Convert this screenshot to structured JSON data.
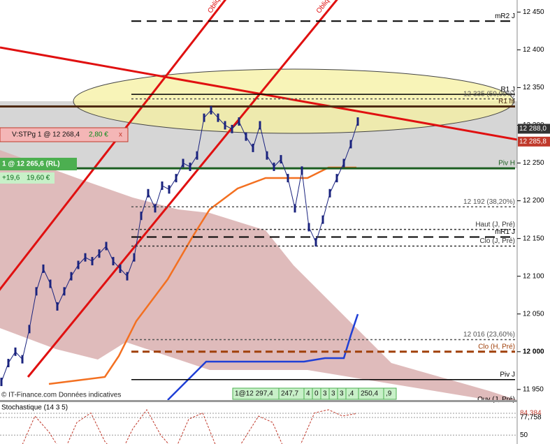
{
  "price_axis": {
    "ylim": [
      11936,
      12466
    ],
    "yticks": [
      {
        "value": 12450,
        "label": "12 450"
      },
      {
        "value": 12400,
        "label": "12 400"
      },
      {
        "value": 12350,
        "label": "12 350"
      },
      {
        "value": 12300,
        "label": "12 300"
      },
      {
        "value": 12250,
        "label": "12 250"
      },
      {
        "value": 12200,
        "label": "12 200"
      },
      {
        "value": 12150,
        "label": "12 150"
      },
      {
        "value": 12100,
        "label": "12 100"
      },
      {
        "value": 12050,
        "label": "12 050"
      },
      {
        "value": 12000,
        "label": "12 000"
      },
      {
        "value": 11950,
        "label": "11 950"
      }
    ]
  },
  "price": {
    "color": "#1a237e",
    "values": [
      11960,
      11985,
      12000,
      11990,
      12030,
      12080,
      12110,
      12090,
      12060,
      12080,
      12100,
      12115,
      12125,
      12120,
      12130,
      12140,
      12120,
      12110,
      12100,
      12125,
      12180,
      12210,
      12190,
      12220,
      12215,
      12230,
      12250,
      12245,
      12260,
      12310,
      12320,
      12310,
      12300,
      12295,
      12305,
      12285,
      12270,
      12300,
      12260,
      12245,
      12255,
      12230,
      12190,
      12240,
      12165,
      12145,
      12175,
      12210,
      12230,
      12250,
      12275,
      12305
    ]
  },
  "levels": [
    {
      "value": 12438,
      "label": "mR2 J",
      "style": "longdash",
      "color": "#000000"
    },
    {
      "value": 12341,
      "label": "R1 J",
      "style": "solid",
      "color": "#000000"
    },
    {
      "value": 12335,
      "label": "12 335 (50,00%)",
      "style": "dotted",
      "color": "#555555"
    },
    {
      "value": 12325,
      "label": "R1 m",
      "style": "thick",
      "color": "#4e2a12"
    },
    {
      "value": 12243,
      "label": "Piv H",
      "style": "thick",
      "color": "#1b5e20"
    },
    {
      "value": 12192,
      "label": "12 192 (38,20%)",
      "style": "dotted",
      "color": "#555555"
    },
    {
      "value": 12162,
      "label": "Haut (J, Pré)",
      "style": "dotted",
      "color": "#333333"
    },
    {
      "value": 12152,
      "label": "mR1 J",
      "style": "longdash",
      "color": "#000000"
    },
    {
      "value": 12140,
      "label": "Clo (J, Pré)",
      "style": "dotted",
      "color": "#333333"
    },
    {
      "value": 12016,
      "label": "12 016 (23,60%)",
      "style": "dotted",
      "color": "#555555"
    },
    {
      "value": 12000,
      "label": "Clo (H, Pré)",
      "style": "brown",
      "color": "#a0400a"
    },
    {
      "value": 11963,
      "label": "Piv J",
      "style": "solid",
      "color": "#000000"
    },
    {
      "value": 11930,
      "label": "Ouv (J, Pré)",
      "style": "none",
      "color": "#000000"
    }
  ],
  "price_tags": [
    {
      "value": 12288,
      "label": "12 288,0",
      "color": "#333333"
    },
    {
      "value": 12285.8,
      "label": "12 285,8",
      "color": "#c0392b"
    }
  ],
  "oblique_labels": [
    "Oblique",
    "Oblique"
  ],
  "order_stop": {
    "text": "V:STPg  1 @ 12 268,4",
    "amount": "2,80 €",
    "close": "x"
  },
  "position": {
    "text": "1 @ 12 265,6 (RL)",
    "points": "+19,6",
    "amount": "19,60 €"
  },
  "copyright": "© IT-Finance.com  Données indicatives",
  "trade_strip": [
    "1@12 297,4",
    "247,7",
    "4",
    "0",
    "3",
    "3",
    "3",
    ",4",
    "250,4",
    ",9"
  ],
  "stochastic": {
    "title": "Stochastique (14 3 5)",
    "ylim": [
      36,
      102
    ],
    "yticks": [
      {
        "value": 84.384,
        "label": "84,384"
      },
      {
        "value": 77.758,
        "label": "77,758"
      },
      50
    ],
    "values": [
      30,
      80,
      55,
      20,
      70,
      85,
      40,
      15,
      60,
      90,
      50,
      25,
      75,
      85,
      30,
      10,
      45,
      80,
      70,
      20,
      35,
      85,
      90,
      80,
      84
    ]
  }
}
